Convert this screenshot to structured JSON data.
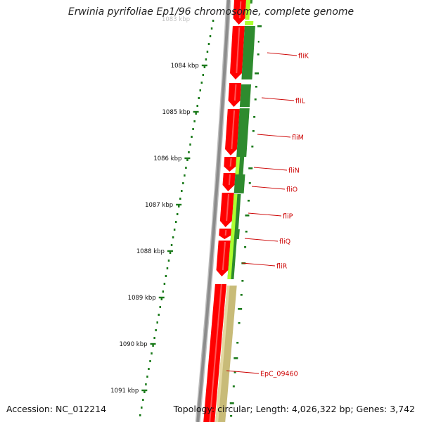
{
  "title": "Erwinia pyrifoliae Ep1/96 chromosome, complete genome",
  "footer": {
    "accession": "Accession: NC_012214",
    "summary": "Topology: circular; Length: 4,026,322 bp; Genes: 3,742"
  },
  "ruler": {
    "top_partial_label": "1083 kbp",
    "labels": [
      "1084 kbp",
      "1085 kbp",
      "1086 kbp",
      "1087 kbp",
      "1088 kbp",
      "1089 kbp",
      "1090 kbp",
      "1091 kbp"
    ]
  },
  "genes": [
    "fliK",
    "fliL",
    "fliM",
    "fliN",
    "fliO",
    "fliP",
    "fliQ",
    "fliR",
    "EpC_09460"
  ],
  "colors": {
    "gene_red": "#ff0000",
    "gene_label_red": "#cc0000",
    "dark_green": "#2e8b2e",
    "light_green": "#adff2f",
    "khaki": "#c8bb78",
    "backbone": "#8c8c8c",
    "tick_green": "#1a7a1a"
  }
}
